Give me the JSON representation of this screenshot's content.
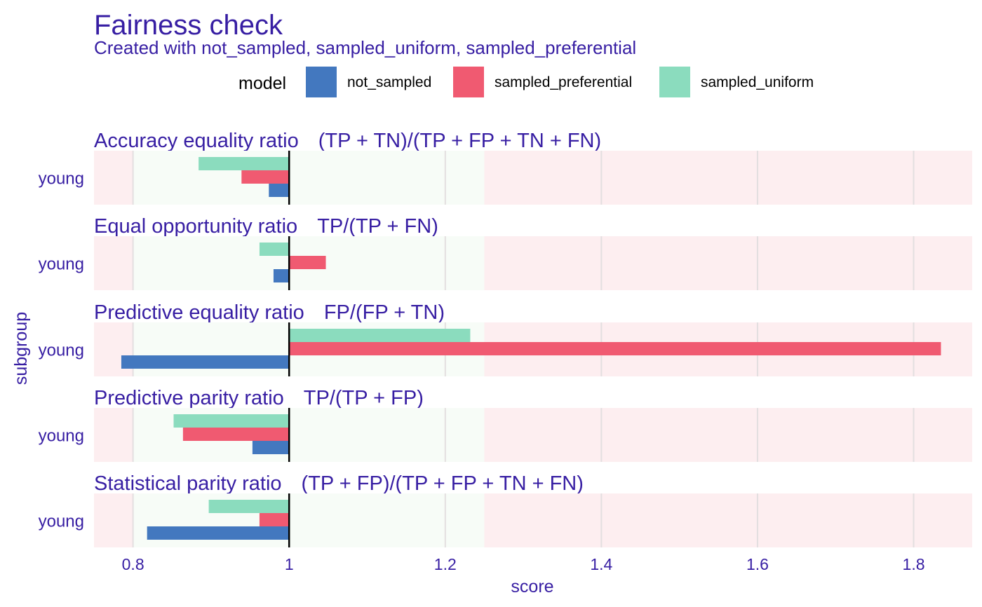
{
  "chart_data": {
    "type": "bar",
    "title": "Fairness check",
    "subtitle": "Created with not_sampled, sampled_uniform, sampled_preferential",
    "xlabel": "score",
    "ylabel": "subgroup",
    "xlim": [
      0.75,
      1.875
    ],
    "xticks": [
      0.8,
      1,
      1.2,
      1.4,
      1.6,
      1.8
    ],
    "xtick_labels": [
      "0.8",
      "1",
      "1.2",
      "1.4",
      "1.6",
      "1.8"
    ],
    "reference_line": 1,
    "fair_range": [
      0.8,
      1.25
    ],
    "grid": true,
    "legend": {
      "title": "model",
      "placement": "top",
      "entries": [
        {
          "name": "not_sampled",
          "color": "#4378bf"
        },
        {
          "name": "sampled_preferential",
          "color": "#f05a71"
        },
        {
          "name": "sampled_uniform",
          "color": "#8bdcbe"
        }
      ]
    },
    "colors": {
      "text": "#371ea3",
      "unfair_background": "#fdeef0",
      "fair_background": "#f7fcf7",
      "grid": "#e3dfe0",
      "reference": "#000000"
    },
    "panels": [
      {
        "name": "Accuracy equality ratio",
        "formula": "(TP + TN)/(TP + FP + TN + FN)",
        "subgroup": "young",
        "values": {
          "not_sampled": 0.974,
          "sampled_preferential": 0.939,
          "sampled_uniform": 0.884
        }
      },
      {
        "name": "Equal opportunity ratio",
        "formula": "TP/(TP + FN)",
        "subgroup": "young",
        "values": {
          "not_sampled": 0.98,
          "sampled_preferential": 1.047,
          "sampled_uniform": 0.962
        }
      },
      {
        "name": "Predictive equality ratio",
        "formula": "FP/(FP + TN)",
        "subgroup": "young",
        "values": {
          "not_sampled": 0.785,
          "sampled_preferential": 1.835,
          "sampled_uniform": 1.232
        }
      },
      {
        "name": "Predictive parity ratio",
        "formula": "TP/(TP + FP)",
        "subgroup": "young",
        "values": {
          "not_sampled": 0.953,
          "sampled_preferential": 0.864,
          "sampled_uniform": 0.852
        }
      },
      {
        "name": "Statistical parity ratio",
        "formula": "(TP + FP)/(TP + FP + TN + FN)",
        "subgroup": "young",
        "values": {
          "not_sampled": 0.818,
          "sampled_preferential": 0.962,
          "sampled_uniform": 0.897
        }
      }
    ]
  }
}
